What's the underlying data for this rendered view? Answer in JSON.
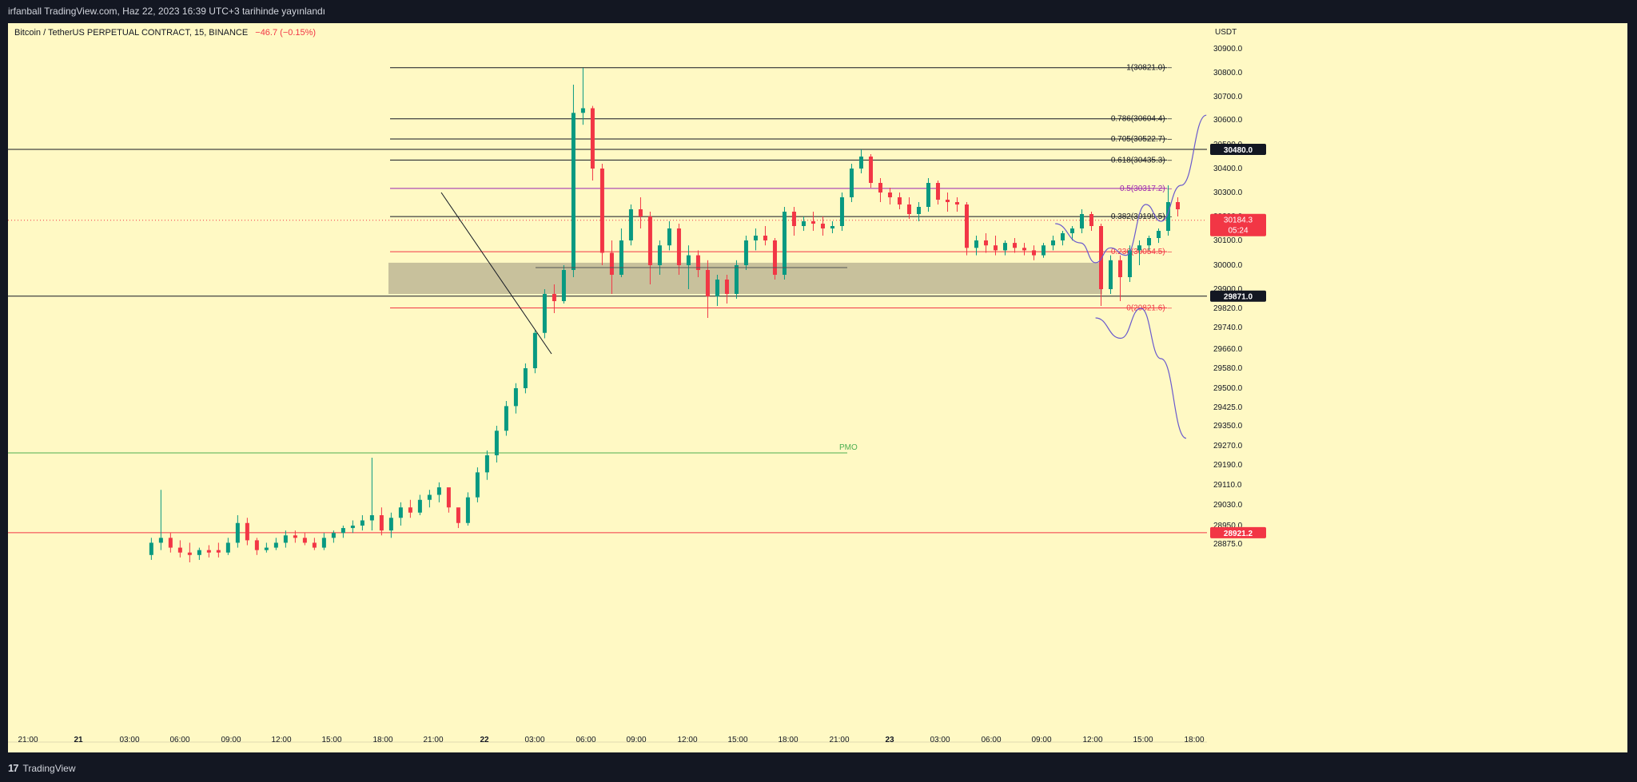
{
  "header": {
    "publish_line": "irfanball TradingView.com, Haz 22, 2023 16:39 UTC+3 tarihinde yayınlandı"
  },
  "footer": {
    "brand": "TradingView",
    "logo_icon": "tradingview-logo-icon"
  },
  "chart_data": {
    "type": "candlestick",
    "symbol_line": "Bitcoin / TetherUS PERPETUAL CONTRACT, 15, BINANCE",
    "change_text": "−46.7 (−0.15%)",
    "currency": "USDT",
    "y_axis_ticks": [
      "30900.0",
      "30800.0",
      "30700.0",
      "30600.0",
      "30500.0",
      "30400.0",
      "30300.0",
      "30200.0",
      "30100.0",
      "30000.0",
      "29900.0",
      "29820.0",
      "29740.0",
      "29660.0",
      "29580.0",
      "29500.0",
      "29425.0",
      "29350.0",
      "29270.0",
      "29190.0",
      "29110.0",
      "29030.0",
      "28950.0",
      "28875.0"
    ],
    "x_axis_ticks": [
      "21:00",
      "21",
      "03:00",
      "06:00",
      "09:00",
      "12:00",
      "15:00",
      "18:00",
      "21:00",
      "22",
      "03:00",
      "06:00",
      "09:00",
      "12:00",
      "15:00",
      "18:00",
      "21:00",
      "23",
      "03:00",
      "06:00",
      "09:00",
      "12:00",
      "15:00",
      "18:00"
    ],
    "current_price": {
      "value": "30184.3",
      "countdown": "05:24",
      "color": "#f23645"
    },
    "price_labels": [
      {
        "value": "30480.0",
        "color": "#131722"
      },
      {
        "value": "29871.0",
        "color": "#131722"
      },
      {
        "value": "28921.2",
        "color": "#f23645"
      }
    ],
    "fibonacci": [
      {
        "label": "1(30821.0)",
        "price": 30821.0,
        "color": "#131722"
      },
      {
        "label": "0.786(30604.4)",
        "price": 30604.4,
        "color": "#131722"
      },
      {
        "label": "0.705(30522.7)",
        "price": 30522.7,
        "color": "#131722"
      },
      {
        "label": "0.618(30435.3)",
        "price": 30435.3,
        "color": "#131722"
      },
      {
        "label": "0.5(30317.2)",
        "price": 30317.2,
        "color": "#9c27b0"
      },
      {
        "label": "0.382(30199.5)",
        "price": 30199.5,
        "color": "#131722"
      },
      {
        "label": "0.236(30054.5)",
        "price": 30054.5,
        "color": "#f23645"
      },
      {
        "label": "0(29821.6)",
        "price": 29821.6,
        "color": "#f23645"
      }
    ],
    "horizontal_lines": [
      {
        "price": 30480.0,
        "color": "#131722"
      },
      {
        "price": 29871.0,
        "color": "#131722"
      },
      {
        "price": 28921.2,
        "color": "#f23645"
      }
    ],
    "pmo": {
      "label": "PMO",
      "price": 29240,
      "color": "#4caf50"
    },
    "zone": {
      "top": 30010,
      "bottom": 29880,
      "color": "#b5ad8f"
    },
    "colors": {
      "up": "#089981",
      "down": "#f23645",
      "background": "#fff9c4",
      "projection": "#6a5acd"
    },
    "candles": [
      [
        28830,
        28900,
        28810,
        28880
      ],
      [
        28880,
        29090,
        28850,
        28900
      ],
      [
        28900,
        28920,
        28840,
        28860
      ],
      [
        28860,
        28890,
        28820,
        28840
      ],
      [
        28840,
        28880,
        28800,
        28830
      ],
      [
        28830,
        28860,
        28810,
        28850
      ],
      [
        28850,
        28870,
        28820,
        28840
      ],
      [
        28850,
        28880,
        28820,
        28840
      ],
      [
        28840,
        28900,
        28830,
        28880
      ],
      [
        28880,
        28990,
        28860,
        28960
      ],
      [
        28960,
        28980,
        28870,
        28890
      ],
      [
        28890,
        28900,
        28830,
        28850
      ],
      [
        28850,
        28880,
        28840,
        28860
      ],
      [
        28860,
        28900,
        28850,
        28880
      ],
      [
        28880,
        28930,
        28860,
        28910
      ],
      [
        28910,
        28930,
        28880,
        28900
      ],
      [
        28900,
        28920,
        28870,
        28880
      ],
      [
        28880,
        28900,
        28850,
        28860
      ],
      [
        28860,
        28920,
        28850,
        28900
      ],
      [
        28900,
        28930,
        28880,
        28920
      ],
      [
        28920,
        28950,
        28900,
        28940
      ],
      [
        28940,
        28970,
        28920,
        28950
      ],
      [
        28950,
        28990,
        28930,
        28970
      ],
      [
        28970,
        29220,
        28930,
        28990
      ],
      [
        28990,
        29020,
        28910,
        28930
      ],
      [
        28930,
        29000,
        28900,
        28980
      ],
      [
        28980,
        29040,
        28950,
        29020
      ],
      [
        29020,
        29050,
        28980,
        29000
      ],
      [
        29000,
        29070,
        28990,
        29050
      ],
      [
        29050,
        29090,
        29020,
        29070
      ],
      [
        29070,
        29120,
        29040,
        29100
      ],
      [
        29100,
        29080,
        29000,
        29020
      ],
      [
        29020,
        29000,
        28940,
        28960
      ],
      [
        28960,
        29080,
        28950,
        29060
      ],
      [
        29060,
        29180,
        29040,
        29160
      ],
      [
        29160,
        29250,
        29130,
        29230
      ],
      [
        29230,
        29350,
        29200,
        29330
      ],
      [
        29330,
        29450,
        29310,
        29430
      ],
      [
        29430,
        29520,
        29400,
        29500
      ],
      [
        29500,
        29600,
        29480,
        29580
      ],
      [
        29580,
        29730,
        29560,
        29720
      ],
      [
        29720,
        29900,
        29700,
        29880
      ],
      [
        29880,
        29920,
        29800,
        29850
      ],
      [
        29850,
        30000,
        29840,
        29980
      ],
      [
        29980,
        30750,
        29950,
        30630
      ],
      [
        30630,
        30820,
        30580,
        30650
      ],
      [
        30650,
        30660,
        30350,
        30400
      ],
      [
        30400,
        30420,
        30000,
        30050
      ],
      [
        30050,
        30100,
        29880,
        29960
      ],
      [
        29960,
        30150,
        29950,
        30100
      ],
      [
        30100,
        30250,
        30080,
        30230
      ],
      [
        30230,
        30280,
        30150,
        30200
      ],
      [
        30200,
        30220,
        29920,
        30000
      ],
      [
        30000,
        30100,
        29960,
        30080
      ],
      [
        30080,
        30180,
        30060,
        30150
      ],
      [
        30150,
        30170,
        29960,
        30000
      ],
      [
        30000,
        30080,
        29900,
        30040
      ],
      [
        30040,
        30060,
        29950,
        29980
      ],
      [
        29980,
        30020,
        29780,
        29870
      ],
      [
        29870,
        29960,
        29830,
        29940
      ],
      [
        29940,
        29960,
        29840,
        29880
      ],
      [
        29880,
        30020,
        29860,
        30000
      ],
      [
        30000,
        30120,
        29980,
        30100
      ],
      [
        30100,
        30150,
        30060,
        30120
      ],
      [
        30120,
        30160,
        30080,
        30100
      ],
      [
        30100,
        30110,
        29940,
        29960
      ],
      [
        29960,
        30240,
        29940,
        30220
      ],
      [
        30220,
        30240,
        30120,
        30160
      ],
      [
        30160,
        30200,
        30140,
        30180
      ],
      [
        30180,
        30220,
        30140,
        30170
      ],
      [
        30170,
        30200,
        30120,
        30150
      ],
      [
        30150,
        30180,
        30130,
        30160
      ],
      [
        30160,
        30300,
        30140,
        30280
      ],
      [
        30280,
        30420,
        30260,
        30400
      ],
      [
        30400,
        30480,
        30380,
        30450
      ],
      [
        30450,
        30460,
        30320,
        30340
      ],
      [
        30340,
        30360,
        30260,
        30300
      ],
      [
        30300,
        30320,
        30250,
        30280
      ],
      [
        30280,
        30300,
        30230,
        30250
      ],
      [
        30250,
        30280,
        30190,
        30210
      ],
      [
        30210,
        30260,
        30180,
        30240
      ],
      [
        30240,
        30360,
        30220,
        30340
      ],
      [
        30340,
        30350,
        30250,
        30270
      ],
      [
        30270,
        30300,
        30220,
        30260
      ],
      [
        30260,
        30280,
        30220,
        30250
      ],
      [
        30250,
        30260,
        30040,
        30070
      ],
      [
        30070,
        30120,
        30040,
        30100
      ],
      [
        30100,
        30130,
        30050,
        30080
      ],
      [
        30080,
        30120,
        30040,
        30060
      ],
      [
        30060,
        30100,
        30040,
        30090
      ],
      [
        30090,
        30110,
        30050,
        30070
      ],
      [
        30070,
        30090,
        30040,
        30060
      ],
      [
        30060,
        30080,
        30020,
        30040
      ],
      [
        30040,
        30090,
        30030,
        30080
      ],
      [
        30080,
        30120,
        30060,
        30100
      ],
      [
        30100,
        30140,
        30080,
        30130
      ],
      [
        30130,
        30160,
        30100,
        30150
      ],
      [
        30150,
        30230,
        30130,
        30210
      ],
      [
        30210,
        30220,
        30140,
        30160
      ],
      [
        30160,
        30170,
        29830,
        29900
      ],
      [
        29900,
        30040,
        29880,
        30020
      ],
      [
        30020,
        30040,
        29850,
        29950
      ],
      [
        29950,
        30080,
        29930,
        30060
      ],
      [
        30060,
        30100,
        30000,
        30080
      ],
      [
        30080,
        30120,
        30060,
        30110
      ],
      [
        30110,
        30150,
        30090,
        30140
      ],
      [
        30140,
        30330,
        30120,
        30260
      ],
      [
        30260,
        30280,
        30200,
        30230
      ]
    ],
    "projection_paths": [
      {
        "name": "",
        "points": [
          [
            20.4,
            30170
          ],
          [
            20.9,
            30090
          ],
          [
            21.2,
            30010
          ],
          [
            21.5,
            30070
          ],
          [
            21.8,
            30040
          ],
          [
            22.2,
            30250
          ],
          [
            22.5,
            30180
          ],
          [
            22.9,
            30330
          ],
          [
            23.4,
            30620
          ]
        ]
      },
      {
        "name": "",
        "points": [
          [
            21.2,
            29780
          ],
          [
            21.7,
            29700
          ],
          [
            22.1,
            29820
          ],
          [
            22.5,
            29620
          ],
          [
            23.0,
            29300
          ]
        ]
      }
    ]
  }
}
